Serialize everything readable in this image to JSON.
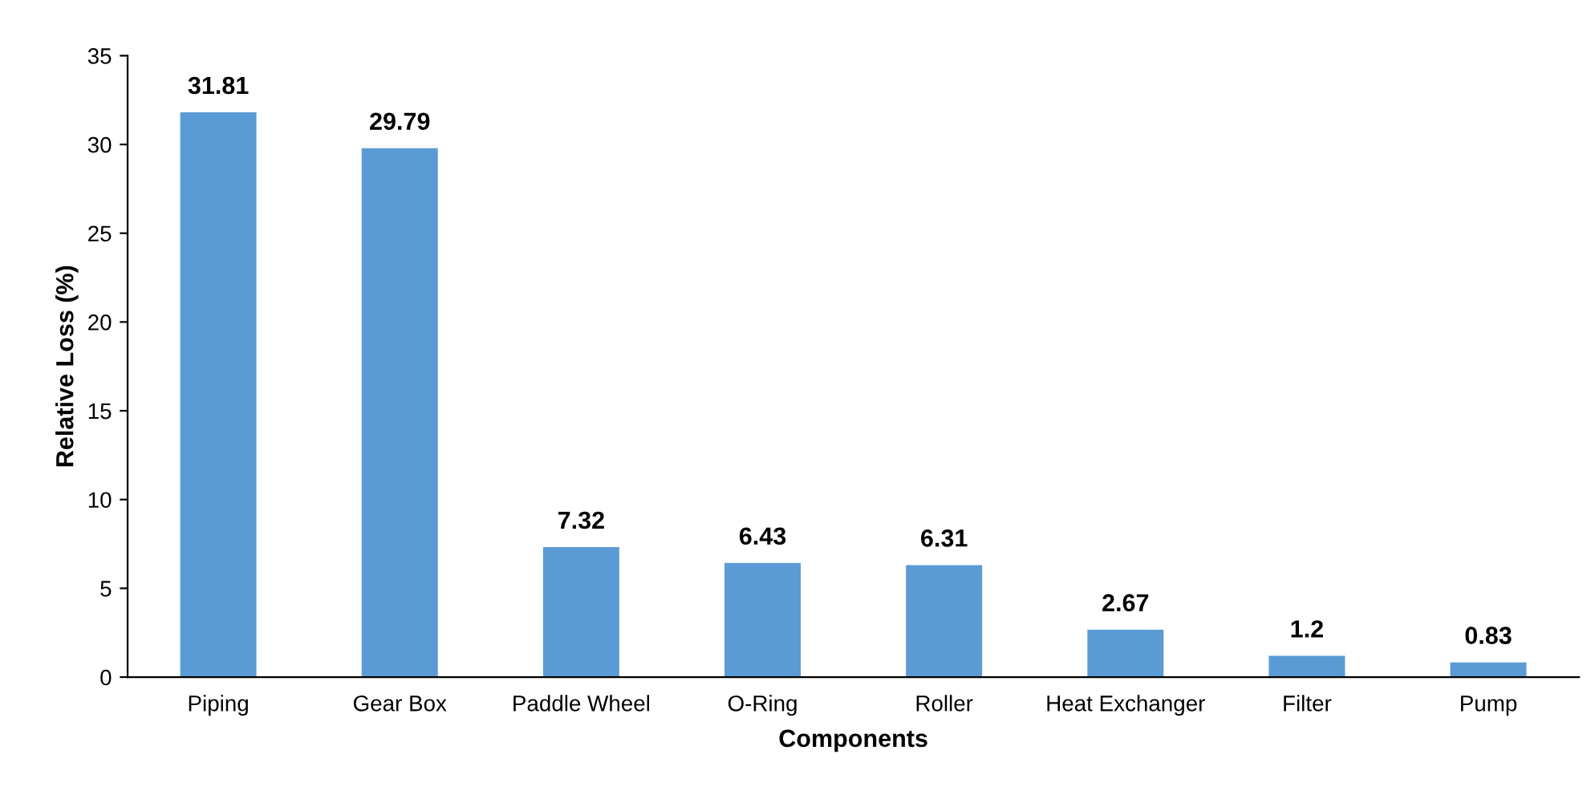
{
  "chart_data": {
    "type": "bar",
    "xlabel": "Components",
    "ylabel": "Relative Loss (%)",
    "categories": [
      "Piping",
      "Gear Box",
      "Paddle Wheel",
      "O-Ring",
      "Roller",
      "Heat Exchanger",
      "Filter",
      "Pump"
    ],
    "values": [
      31.81,
      29.79,
      7.32,
      6.43,
      6.31,
      2.67,
      1.2,
      0.83
    ],
    "value_labels": [
      "31.81",
      "29.79",
      "7.32",
      "6.43",
      "6.31",
      "2.67",
      "1.2",
      "0.83"
    ],
    "color": "#5b9bd5",
    "ylim": [
      0,
      35
    ],
    "yticks": [
      0,
      5,
      10,
      15,
      20,
      25,
      30,
      35
    ],
    "grid": false,
    "legend": false
  }
}
